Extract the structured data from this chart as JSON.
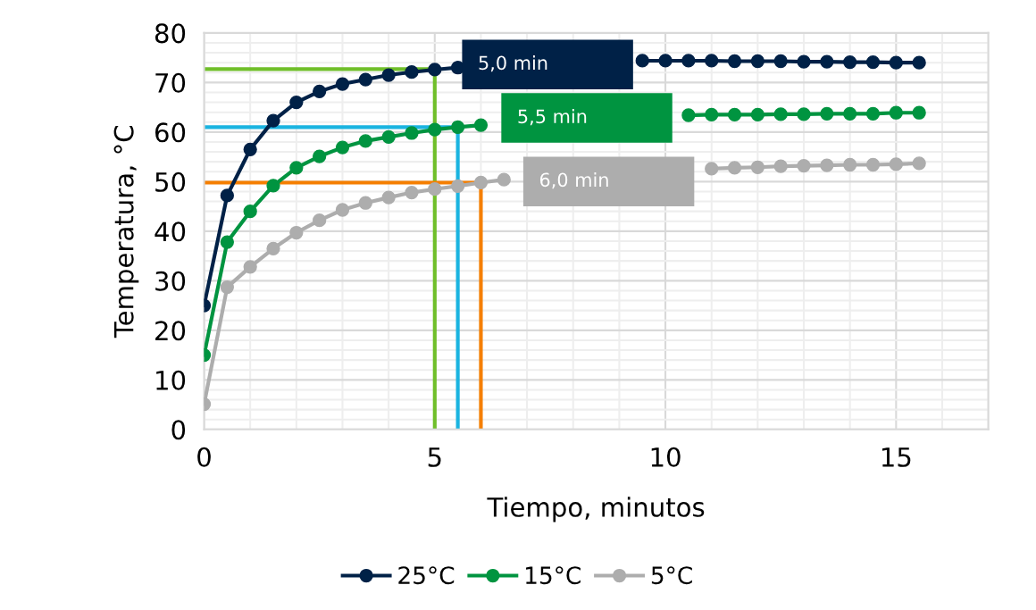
{
  "chart_data": {
    "type": "line",
    "xlabel": "Tiempo, minutos",
    "ylabel": "Temperatura, °C",
    "x": [
      0,
      0.5,
      1,
      1.5,
      2,
      2.5,
      3,
      3.5,
      4,
      4.5,
      5,
      5.5,
      6,
      6.5,
      7,
      7.5,
      8,
      8.5,
      9,
      9.5,
      10,
      10.5,
      11,
      11.5,
      12,
      12.5,
      13,
      13.5,
      14,
      14.5,
      15,
      15.5
    ],
    "series": [
      {
        "name": "25°C",
        "color": "#002147",
        "marker": "circle",
        "values": [
          25,
          47.2,
          56.5,
          62.3,
          66,
          68.2,
          69.7,
          70.6,
          71.5,
          72.1,
          72.6,
          73.0,
          null,
          null,
          null,
          null,
          null,
          null,
          null,
          74.4,
          74.4,
          74.4,
          74.4,
          74.3,
          74.3,
          74.3,
          74.2,
          74.2,
          74.1,
          74.1,
          74.0,
          74.0
        ]
      },
      {
        "name": "15°C",
        "color": "#009440",
        "marker": "circle",
        "values": [
          15,
          37.8,
          44.0,
          49.2,
          52.8,
          55.1,
          56.9,
          58.2,
          59.0,
          59.8,
          60.5,
          61.0,
          61.4,
          null,
          null,
          null,
          null,
          null,
          null,
          null,
          null,
          63.4,
          63.5,
          63.5,
          63.5,
          63.6,
          63.6,
          63.7,
          63.7,
          63.7,
          63.9,
          63.9
        ]
      },
      {
        "name": "5°C",
        "color": "#adadad",
        "marker": "circle",
        "values": [
          5.1,
          28.7,
          32.8,
          36.5,
          39.7,
          42.2,
          44.3,
          45.7,
          46.8,
          47.8,
          48.5,
          49.1,
          49.8,
          50.4,
          null,
          null,
          null,
          null,
          null,
          null,
          null,
          null,
          52.6,
          52.8,
          52.9,
          53.1,
          53.2,
          53.3,
          53.4,
          53.4,
          53.5,
          53.7
        ]
      },
      {
        "color": "#70bf2a",
        "marker": "none",
        "x": [
          0,
          5,
          5
        ],
        "values": [
          72.7,
          72.7,
          0
        ]
      },
      {
        "color": "#1ab4e0",
        "marker": "none",
        "x": [
          0,
          5.5,
          5.5
        ],
        "values": [
          61.0,
          61.0,
          0
        ]
      },
      {
        "color": "#f57f00",
        "marker": "none",
        "x": [
          0,
          6,
          6
        ],
        "values": [
          49.8,
          49.8,
          0
        ]
      }
    ],
    "annotations": [
      "5,0 min",
      "5,5 min",
      "6,0 min"
    ],
    "xlim": [
      0,
      17
    ],
    "xticks": [
      0,
      5,
      10,
      15
    ],
    "ylim": [
      0,
      80
    ],
    "yticks": [
      0,
      10,
      20,
      30,
      40,
      50,
      60,
      70,
      80
    ],
    "grid": true,
    "legend": "bottom"
  }
}
